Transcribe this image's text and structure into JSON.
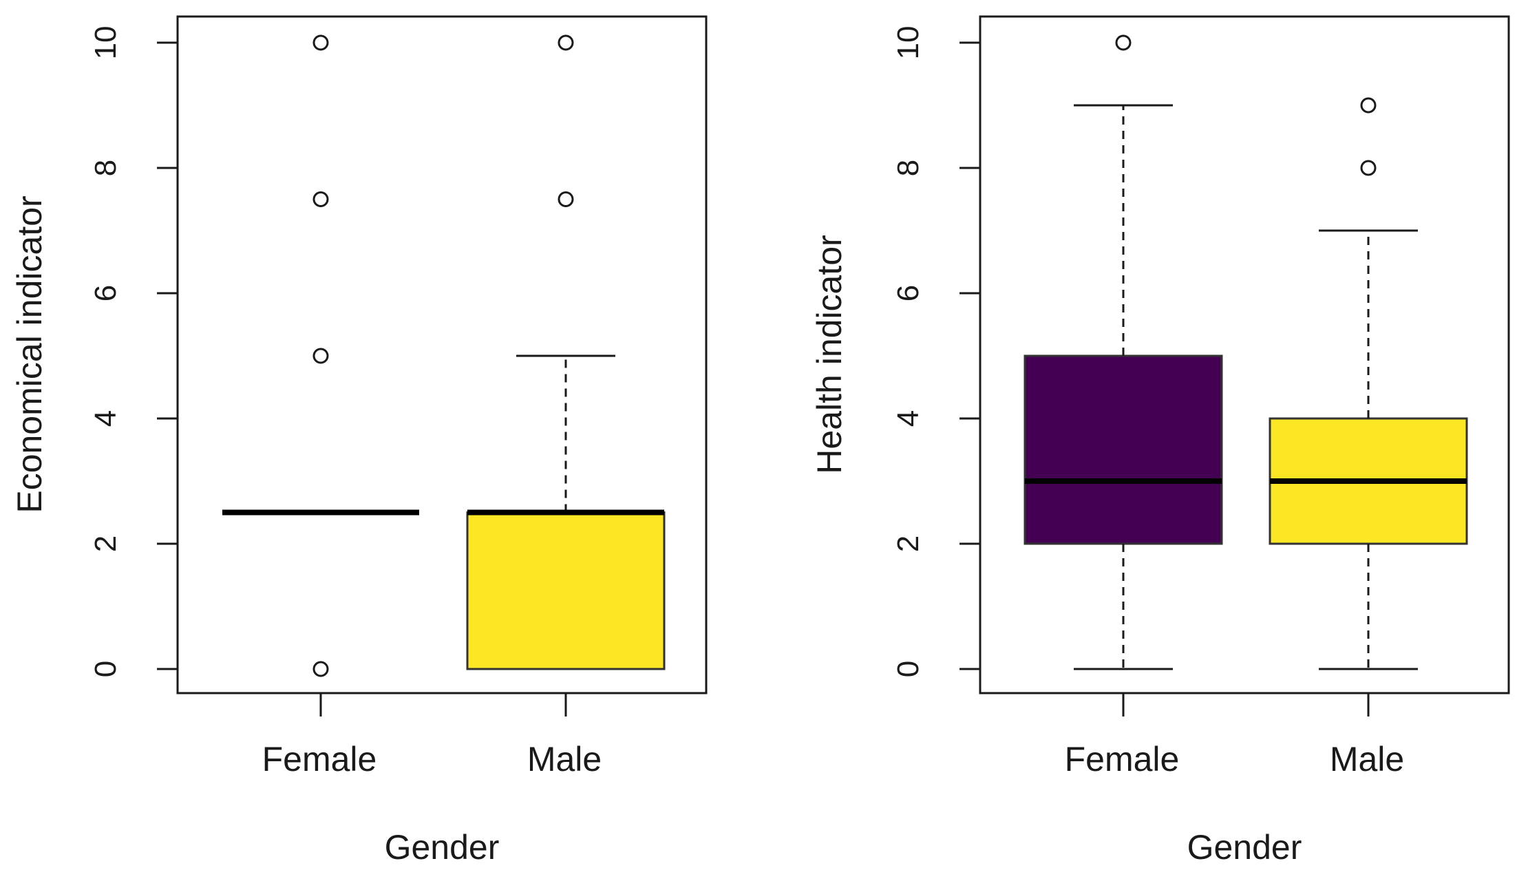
{
  "chart_data": [
    {
      "type": "boxplot",
      "xlabel": "Gender",
      "ylabel": "Economical indicator",
      "ylim": [
        0,
        10
      ],
      "yticks": [
        "0",
        "2",
        "4",
        "6",
        "8",
        "10"
      ],
      "categories": [
        "Female",
        "Male"
      ],
      "boxes": [
        {
          "name": "Female",
          "color": "#440154",
          "q1": 2.5,
          "median": 2.5,
          "q3": 2.5,
          "whisker_low": 2.5,
          "whisker_high": 2.5,
          "outliers": [
            0,
            5,
            7.5,
            10
          ]
        },
        {
          "name": "Male",
          "color": "#FDE725",
          "q1": 0,
          "median": 2.5,
          "q3": 2.5,
          "whisker_low": 0,
          "whisker_high": 5,
          "outliers": [
            7.5,
            10
          ]
        }
      ]
    },
    {
      "type": "boxplot",
      "xlabel": "Gender",
      "ylabel": "Health indicator",
      "ylim": [
        0,
        10
      ],
      "yticks": [
        "0",
        "2",
        "4",
        "6",
        "8",
        "10"
      ],
      "categories": [
        "Female",
        "Male"
      ],
      "boxes": [
        {
          "name": "Female",
          "color": "#440154",
          "q1": 2,
          "median": 3,
          "q3": 5,
          "whisker_low": 0,
          "whisker_high": 9,
          "outliers": [
            10
          ]
        },
        {
          "name": "Male",
          "color": "#FDE725",
          "q1": 2,
          "median": 3,
          "q3": 4,
          "whisker_low": 0,
          "whisker_high": 7,
          "outliers": [
            8,
            9
          ]
        }
      ]
    }
  ]
}
